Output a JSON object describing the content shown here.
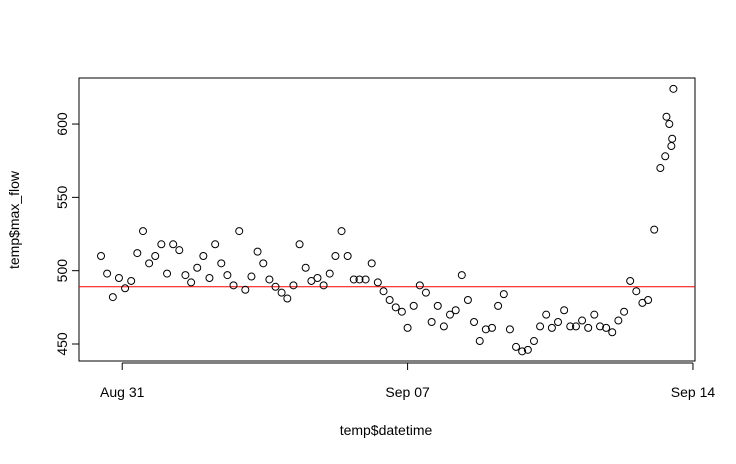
{
  "chart_data": {
    "type": "scatter",
    "xlabel": "temp$datetime",
    "ylabel": "temp$max_flow",
    "x": [
      -0.52,
      -0.37,
      -0.23,
      -0.08,
      0.07,
      0.22,
      0.37,
      0.51,
      0.66,
      0.81,
      0.96,
      1.1,
      1.25,
      1.4,
      1.55,
      1.69,
      1.84,
      1.99,
      2.14,
      2.28,
      2.43,
      2.58,
      2.73,
      2.87,
      3.02,
      3.17,
      3.32,
      3.46,
      3.61,
      3.76,
      3.91,
      4.05,
      4.2,
      4.35,
      4.5,
      4.64,
      4.79,
      4.94,
      5.09,
      5.23,
      5.38,
      5.53,
      5.68,
      5.82,
      5.97,
      6.12,
      6.27,
      6.41,
      6.56,
      6.71,
      6.86,
      7.0,
      7.15,
      7.3,
      7.45,
      7.59,
      7.74,
      7.89,
      8.04,
      8.18,
      8.33,
      8.48,
      8.63,
      8.77,
      8.92,
      9.07,
      9.22,
      9.36,
      9.51,
      9.66,
      9.81,
      9.95,
      10.1,
      10.25,
      10.4,
      10.54,
      10.69,
      10.84,
      10.99,
      11.13,
      11.28,
      11.43,
      11.58,
      11.72,
      11.87,
      12.02,
      12.17,
      12.31,
      12.46,
      12.61,
      12.76,
      12.9,
      13.05,
      13.2,
      13.35,
      13.49,
      13.32,
      13.42,
      13.52,
      13.47
    ],
    "values": [
      510,
      498,
      482,
      495,
      488,
      493,
      512,
      527,
      505,
      510,
      518,
      498,
      518,
      514,
      497,
      492,
      502,
      510,
      495,
      518,
      505,
      497,
      490,
      527,
      487,
      496,
      513,
      505,
      494,
      489,
      485,
      481,
      490,
      518,
      502,
      493,
      495,
      490,
      498,
      510,
      527,
      510,
      494,
      494,
      494,
      505,
      492,
      486,
      480,
      475,
      472,
      461,
      476,
      490,
      485,
      465,
      476,
      462,
      470,
      473,
      497,
      480,
      465,
      452,
      460,
      461,
      476,
      484,
      460,
      448,
      445,
      446,
      452,
      462,
      470,
      461,
      465,
      473,
      462,
      462,
      466,
      461,
      470,
      462,
      461,
      458,
      466,
      472,
      493,
      486,
      478,
      480,
      528,
      570,
      605,
      590,
      578,
      600,
      624,
      585
    ],
    "color": "#000000",
    "hline": 489,
    "hline_color": "#ff0000",
    "xlim": [
      -1.06,
      14.05
    ],
    "xticks": [
      {
        "value": 0,
        "label": "Aug 31"
      },
      {
        "value": 7,
        "label": "Sep 07"
      },
      {
        "value": 14,
        "label": "Sep 14"
      }
    ],
    "ylim": [
      438.4,
      631.4
    ],
    "yticks": [
      450,
      500,
      550,
      600
    ]
  }
}
